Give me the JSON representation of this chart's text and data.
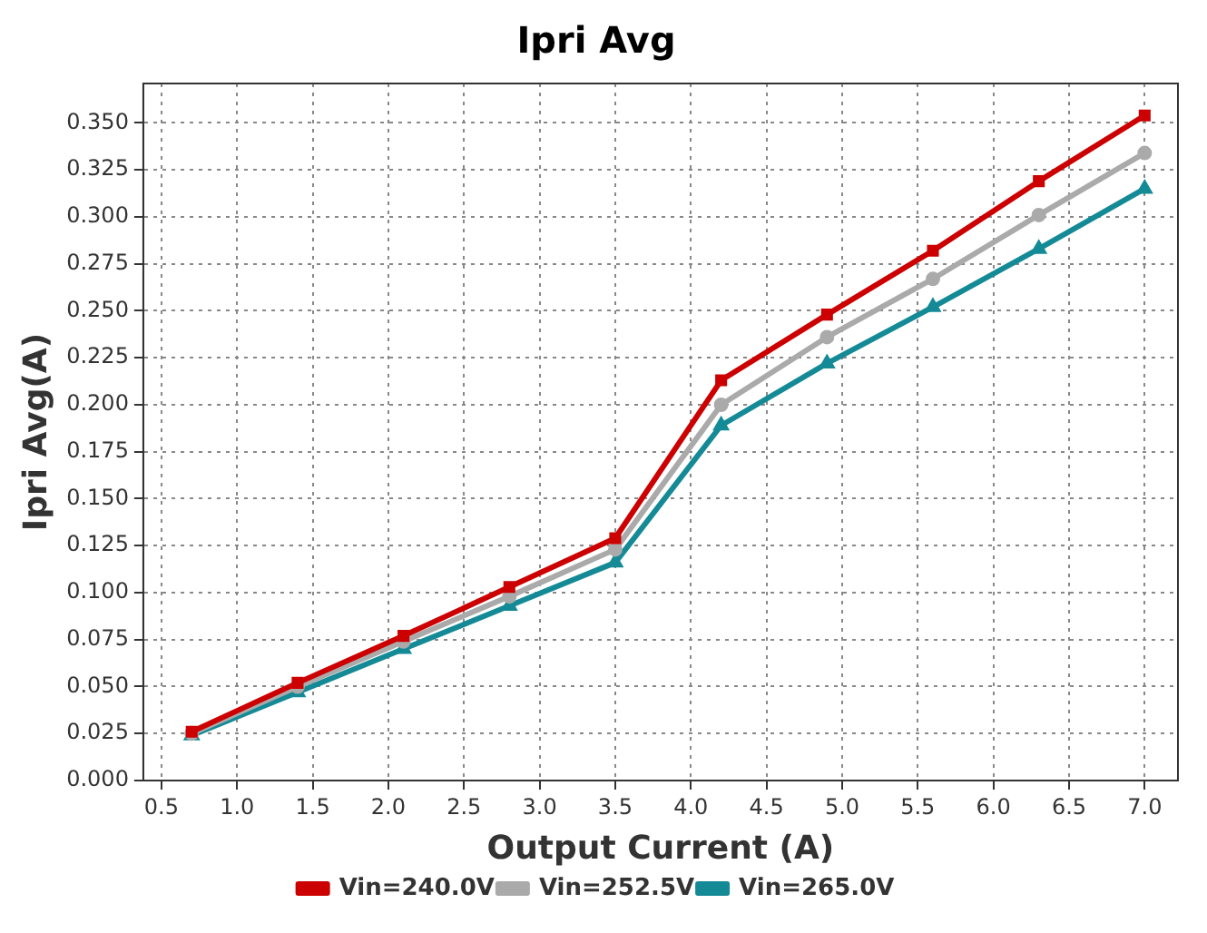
{
  "chart_data": {
    "type": "line",
    "title": "Ipri Avg",
    "xlabel": "Output Current (A)",
    "ylabel": "Ipri Avg(A)",
    "x": [
      0.7,
      1.4,
      2.1,
      2.8,
      3.5,
      4.2,
      4.9,
      5.6,
      6.3,
      7.0
    ],
    "series": [
      {
        "name": "Vin=240.0V",
        "color": "#cc0000",
        "marker": "square",
        "values": [
          0.026,
          0.052,
          0.077,
          0.103,
          0.129,
          0.213,
          0.248,
          0.282,
          0.319,
          0.354
        ]
      },
      {
        "name": "Vin=252.5V",
        "color": "#aaaaaa",
        "marker": "circle",
        "values": [
          0.025,
          0.05,
          0.074,
          0.098,
          0.123,
          0.2,
          0.236,
          0.267,
          0.301,
          0.334
        ]
      },
      {
        "name": "Vin=265.0V",
        "color": "#148a96",
        "marker": "triangle",
        "values": [
          0.024,
          0.047,
          0.07,
          0.093,
          0.116,
          0.189,
          0.222,
          0.252,
          0.283,
          0.315
        ]
      }
    ],
    "xlim": [
      0.38,
      7.22
    ],
    "xticks": [
      {
        "value": 0.5,
        "label": "0.5"
      },
      {
        "value": 1,
        "label": "1.0"
      },
      {
        "value": 1.5,
        "label": "1.5"
      },
      {
        "value": 2,
        "label": "2.0"
      },
      {
        "value": 2.5,
        "label": "2.5"
      },
      {
        "value": 3,
        "label": "3.0"
      },
      {
        "value": 3.5,
        "label": "3.5"
      },
      {
        "value": 4,
        "label": "4.0"
      },
      {
        "value": 4.5,
        "label": "4.5"
      },
      {
        "value": 5,
        "label": "5.0"
      },
      {
        "value": 5.5,
        "label": "5.5"
      },
      {
        "value": 6,
        "label": "6.0"
      },
      {
        "value": 6.5,
        "label": "6.5"
      },
      {
        "value": 7,
        "label": "7.0"
      }
    ],
    "ylim": [
      0,
      0.371
    ],
    "yticks": [
      {
        "value": 0,
        "label": "0.000"
      },
      {
        "value": 0.025,
        "label": "0.025"
      },
      {
        "value": 0.05,
        "label": "0.050"
      },
      {
        "value": 0.075,
        "label": "0.075"
      },
      {
        "value": 0.1,
        "label": "0.100"
      },
      {
        "value": 0.125,
        "label": "0.125"
      },
      {
        "value": 0.15,
        "label": "0.150"
      },
      {
        "value": 0.175,
        "label": "0.175"
      },
      {
        "value": 0.2,
        "label": "0.200"
      },
      {
        "value": 0.225,
        "label": "0.225"
      },
      {
        "value": 0.25,
        "label": "0.250"
      },
      {
        "value": 0.275,
        "label": "0.275"
      },
      {
        "value": 0.3,
        "label": "0.300"
      },
      {
        "value": 0.325,
        "label": "0.325"
      },
      {
        "value": 0.35,
        "label": "0.350"
      }
    ],
    "grid": true,
    "legend": "bottom",
    "line_style": "solid"
  }
}
